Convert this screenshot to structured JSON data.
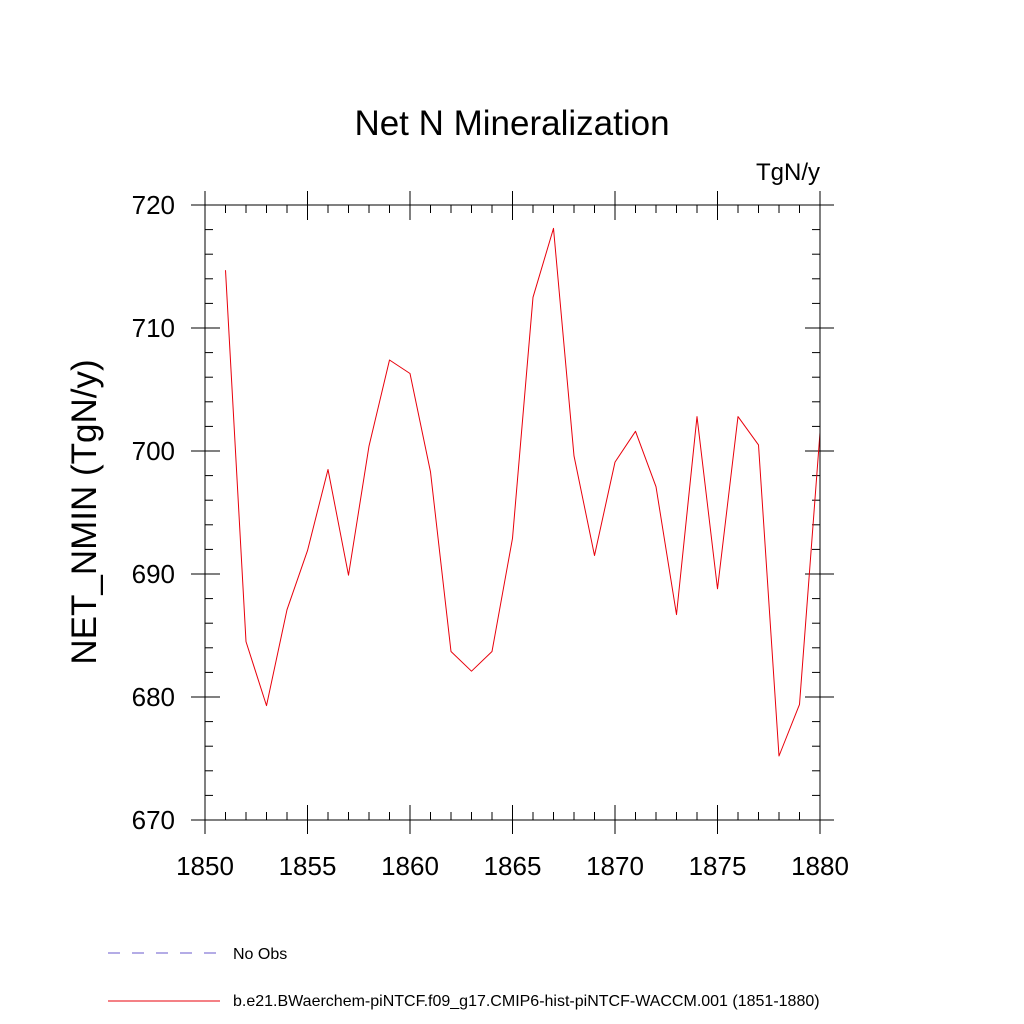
{
  "chart_data": {
    "type": "line",
    "title": "Net N Mineralization",
    "units": "TgN/y",
    "ylabel": "NET_NMIN  (TgN/y)",
    "xlabel": "",
    "xlim": [
      1850,
      1880
    ],
    "ylim": [
      670,
      720
    ],
    "x_ticks": [
      1850,
      1855,
      1860,
      1865,
      1870,
      1875,
      1880
    ],
    "y_ticks": [
      670,
      680,
      690,
      700,
      710,
      720
    ],
    "x_tick_labels": [
      "1850",
      "1855",
      "1860",
      "1865",
      "1870",
      "1875",
      "1880"
    ],
    "y_tick_labels": [
      "670",
      "680",
      "690",
      "700",
      "710",
      "720"
    ],
    "grid": false,
    "legend_position": "bottom",
    "series": [
      {
        "name": "No Obs",
        "color": "#6a5acd",
        "dash": "dashed",
        "x": [],
        "y": []
      },
      {
        "name": "b.e21.BWaerchem-piNTCF.f09_g17.CMIP6-hist-piNTCF-WACCM.001 (1851-1880)",
        "color": "#e8000b",
        "dash": "solid",
        "x": [
          1851,
          1852,
          1853,
          1854,
          1855,
          1856,
          1857,
          1858,
          1859,
          1860,
          1861,
          1862,
          1863,
          1864,
          1865,
          1866,
          1867,
          1868,
          1869,
          1870,
          1871,
          1872,
          1873,
          1874,
          1875,
          1876,
          1877,
          1878,
          1879,
          1880
        ],
        "y": [
          714.7,
          684.5,
          679.3,
          687.1,
          691.9,
          698.5,
          689.9,
          700.4,
          707.4,
          706.3,
          698.3,
          683.7,
          682.1,
          683.7,
          692.9,
          712.5,
          718.1,
          699.6,
          691.5,
          699.1,
          701.6,
          697.1,
          686.7,
          702.8,
          688.8,
          702.8,
          700.5,
          675.2,
          679.4,
          701.5
        ]
      }
    ]
  }
}
